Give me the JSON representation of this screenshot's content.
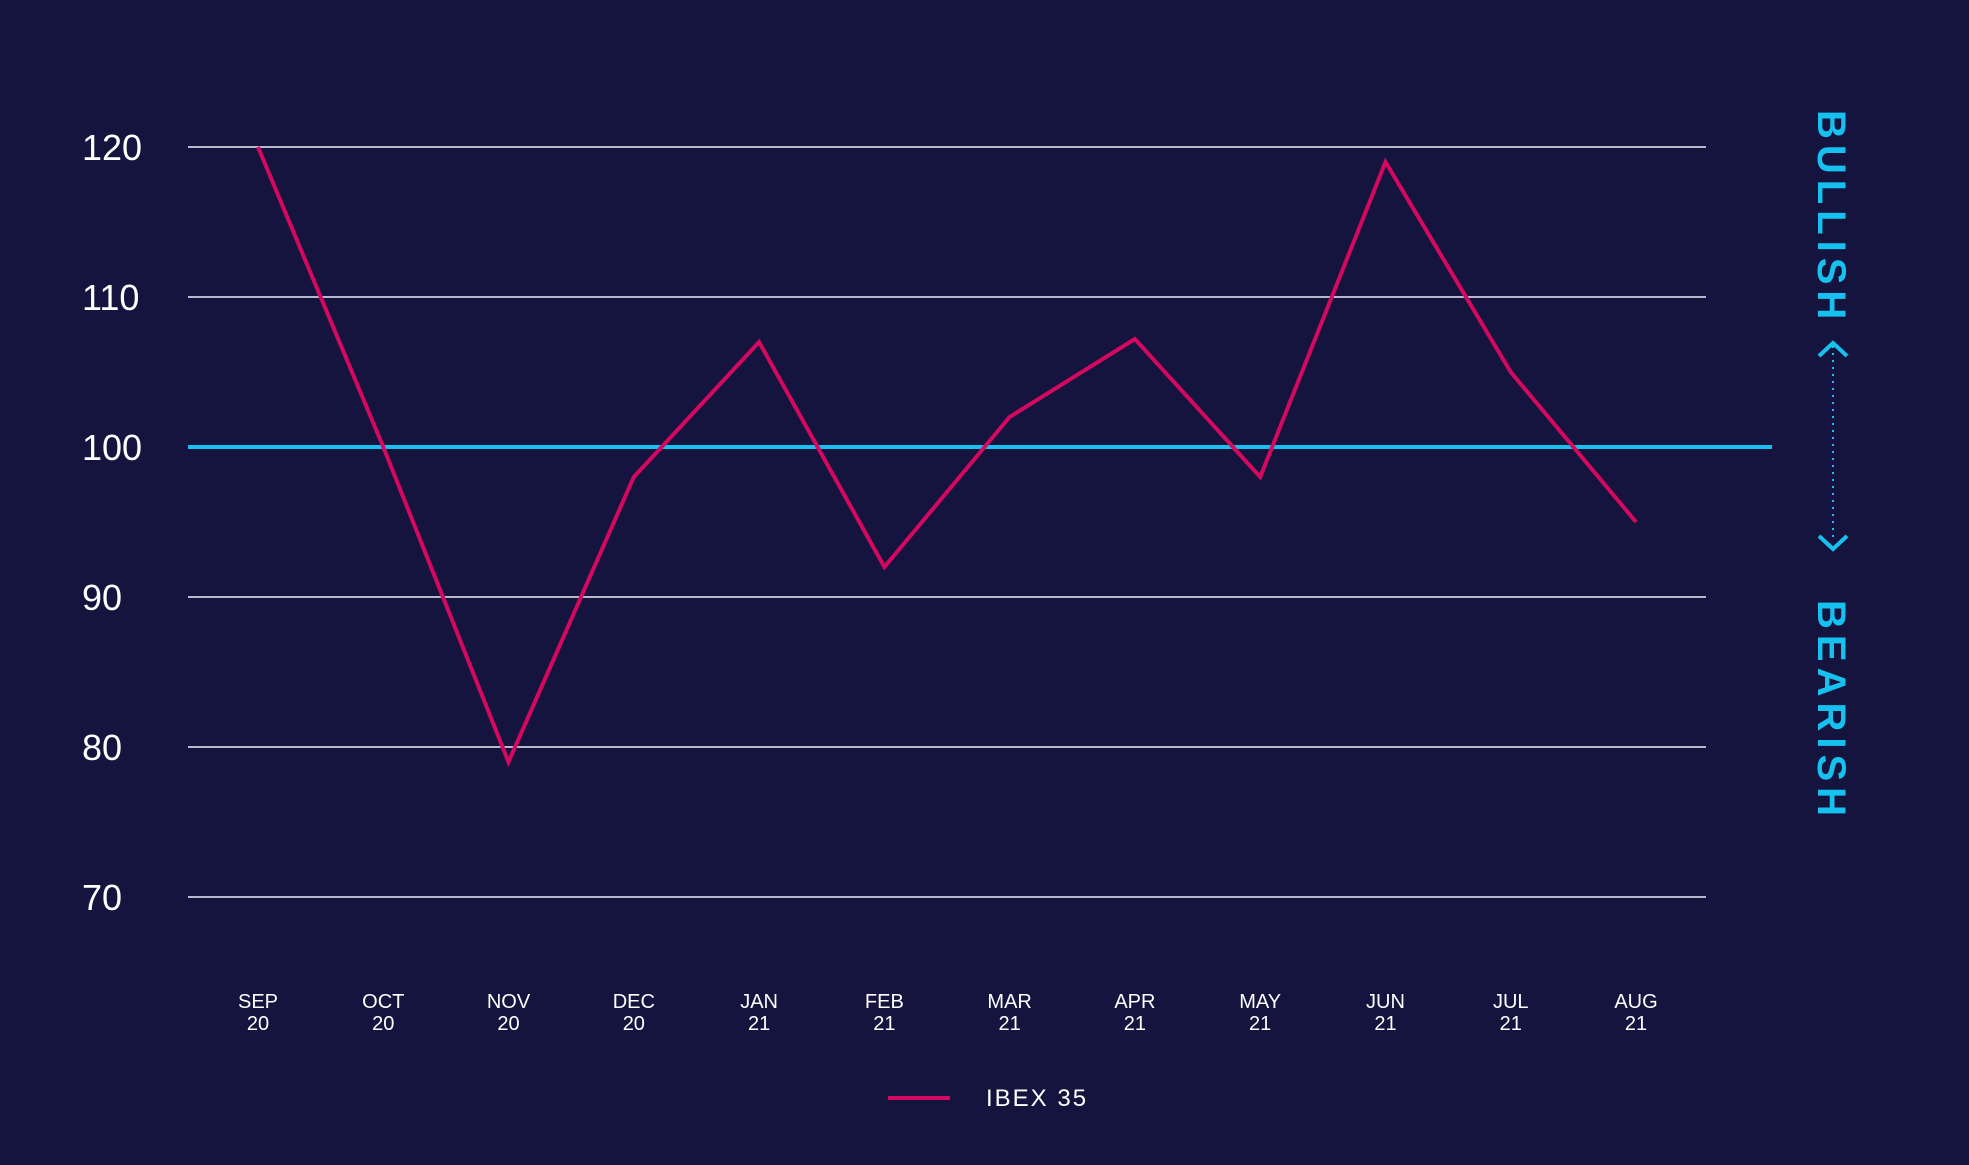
{
  "colors": {
    "background": "#14143f",
    "gridline": "#b8b8cc",
    "baseline": "#17c1ef",
    "series": "#d4085f",
    "text": "#ffffff",
    "accent": "#17c1ef"
  },
  "side_labels": {
    "bullish": "BULLISH",
    "bearish": "BEARISH"
  },
  "chart_data": {
    "type": "line",
    "x": [
      {
        "month": "SEP",
        "year": "20"
      },
      {
        "month": "OCT",
        "year": "20"
      },
      {
        "month": "NOV",
        "year": "20"
      },
      {
        "month": "DEC",
        "year": "20"
      },
      {
        "month": "JAN",
        "year": "21"
      },
      {
        "month": "FEB",
        "year": "21"
      },
      {
        "month": "MAR",
        "year": "21"
      },
      {
        "month": "APR",
        "year": "21"
      },
      {
        "month": "MAY",
        "year": "21"
      },
      {
        "month": "JUN",
        "year": "21"
      },
      {
        "month": "JUL",
        "year": "21"
      },
      {
        "month": "AUG",
        "year": "21"
      }
    ],
    "series": [
      {
        "name": "IBEX 35",
        "values": [
          120,
          100,
          79,
          98,
          107,
          92,
          102,
          107.2,
          98,
          119,
          105,
          95
        ]
      }
    ],
    "yticks": [
      70,
      80,
      90,
      100,
      110,
      120
    ],
    "ylim": [
      70,
      120
    ],
    "reference_line": 100,
    "grid": true,
    "legend": "bottom-center",
    "title": "",
    "xlabel": "",
    "ylabel": ""
  }
}
